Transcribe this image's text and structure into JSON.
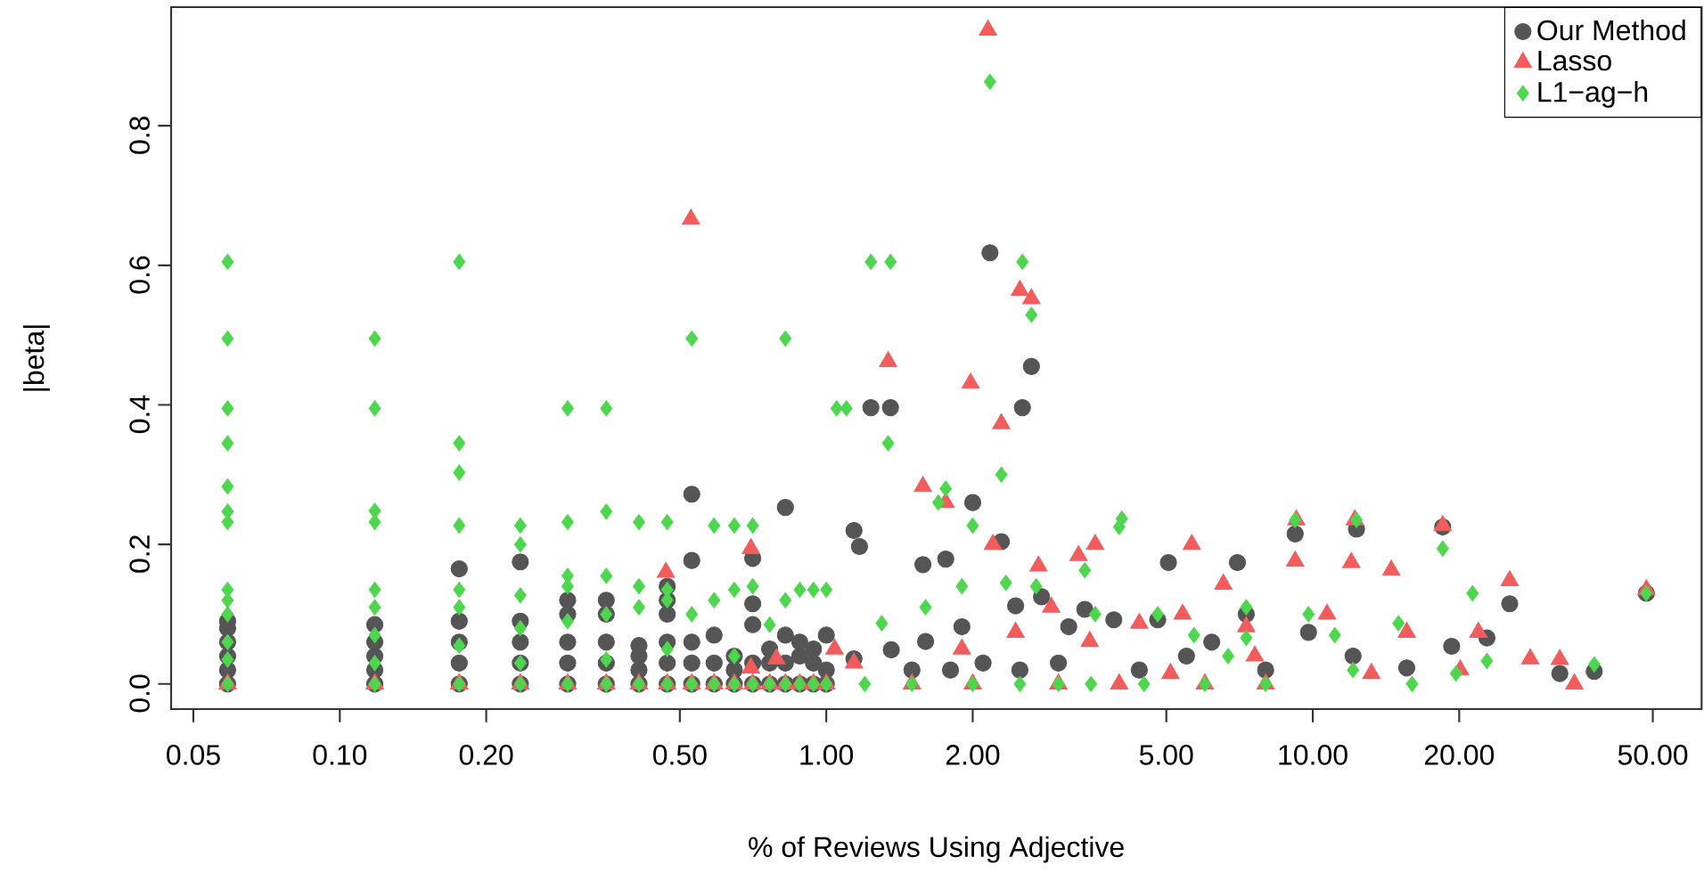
{
  "chart_data": {
    "type": "scatter",
    "xlabel": "% of Reviews Using Adjective",
    "ylabel": "|beta|",
    "log": "x",
    "legend": "top right",
    "grid": false,
    "xlim": [
      0.045,
      63
    ],
    "ylim": [
      -0.036,
      0.97
    ],
    "xticks": [
      {
        "value": 0.05,
        "label": "0.05"
      },
      {
        "value": 0.1,
        "label": "0.10"
      },
      {
        "value": 0.2,
        "label": "0.20"
      },
      {
        "value": 0.5,
        "label": "0.50"
      },
      {
        "value": 1,
        "label": "1.00"
      },
      {
        "value": 2,
        "label": "2.00"
      },
      {
        "value": 5,
        "label": "5.00"
      },
      {
        "value": 10,
        "label": "10.00"
      },
      {
        "value": 20,
        "label": "20.00"
      },
      {
        "value": 50,
        "label": "50.00"
      }
    ],
    "yticks": [
      {
        "value": 0,
        "label": "0.0"
      },
      {
        "value": 0.2,
        "label": "0.2"
      },
      {
        "value": 0.4,
        "label": "0.4"
      },
      {
        "value": 0.6,
        "label": "0.6"
      },
      {
        "value": 0.8,
        "label": "0.8"
      }
    ],
    "series": [
      {
        "name": "Our Method",
        "color": "#555555",
        "marker": "circle",
        "x": [
          0.0588,
          0.0588,
          0.0588,
          0.0588,
          0.0588,
          0.0588,
          0.118,
          0.118,
          0.118,
          0.118,
          0.118,
          0.176,
          0.176,
          0.176,
          0.176,
          0.176,
          0.235,
          0.235,
          0.235,
          0.235,
          0.235,
          0.294,
          0.294,
          0.294,
          0.294,
          0.294,
          0.353,
          0.353,
          0.353,
          0.353,
          0.353,
          0.412,
          0.412,
          0.412,
          0.412,
          0.471,
          0.471,
          0.471,
          0.471,
          0.471,
          0.471,
          0.529,
          0.529,
          0.529,
          0.529,
          0.529,
          0.588,
          0.588,
          0.588,
          0.647,
          0.647,
          0.647,
          0.706,
          0.706,
          0.706,
          0.706,
          0.706,
          0.765,
          0.765,
          0.765,
          0.824,
          0.824,
          0.824,
          0.824,
          0.882,
          0.882,
          0.882,
          0.941,
          0.941,
          0.941,
          1.0,
          1.0,
          1.0,
          1.14,
          1.14,
          1.17,
          1.235,
          1.355,
          1.36,
          1.5,
          1.58,
          1.6,
          1.76,
          1.8,
          1.9,
          2.0,
          2.1,
          2.17,
          2.29,
          2.45,
          2.5,
          2.53,
          2.64,
          2.77,
          3.0,
          3.15,
          3.4,
          3.9,
          4.4,
          4.8,
          5.05,
          5.5,
          6.2,
          7.0,
          7.3,
          8.0,
          9.2,
          9.8,
          12.1,
          12.3,
          15.6,
          18.5,
          19.3,
          22.8,
          25.4,
          32.2,
          37.9,
          48.5
        ],
        "values": [
          0,
          0.02,
          0.04,
          0.06,
          0.08,
          0.09,
          0,
          0.02,
          0.04,
          0.06,
          0.085,
          0,
          0.03,
          0.06,
          0.09,
          0.165,
          0,
          0.03,
          0.06,
          0.09,
          0.175,
          0,
          0.03,
          0.06,
          0.1,
          0.12,
          0,
          0.03,
          0.06,
          0.1,
          0.12,
          0,
          0.02,
          0.04,
          0.055,
          0,
          0.03,
          0.06,
          0.1,
          0.12,
          0.14,
          0,
          0.03,
          0.06,
          0.177,
          0.272,
          0,
          0.03,
          0.07,
          0,
          0.02,
          0.04,
          0,
          0.03,
          0.085,
          0.115,
          0.18,
          0,
          0.03,
          0.05,
          0,
          0.03,
          0.07,
          0.253,
          0,
          0.04,
          0.06,
          0,
          0.03,
          0.05,
          0,
          0.02,
          0.07,
          0.036,
          0.22,
          0.197,
          0.396,
          0.396,
          0.049,
          0.02,
          0.171,
          0.061,
          0.179,
          0.02,
          0.082,
          0.26,
          0.03,
          0.618,
          0.204,
          0.112,
          0.02,
          0.396,
          0.455,
          0.125,
          0.03,
          0.082,
          0.107,
          0.092,
          0.02,
          0.092,
          0.174,
          0.04,
          0.06,
          0.174,
          0.1,
          0.02,
          0.215,
          0.074,
          0.04,
          0.222,
          0.023,
          0.225,
          0.054,
          0.066,
          0.115,
          0.015,
          0.018,
          0.13
        ]
      },
      {
        "name": "Lasso",
        "color": "#f25c5c",
        "marker": "triangle",
        "x": [
          0.0588,
          0.118,
          0.176,
          0.235,
          0.294,
          0.353,
          0.412,
          0.471,
          0.529,
          0.588,
          0.647,
          0.706,
          0.765,
          0.824,
          0.882,
          0.941,
          1.0,
          0.468,
          0.527,
          0.7,
          0.7,
          0.79,
          1.04,
          1.14,
          1.34,
          1.5,
          1.58,
          1.76,
          1.9,
          1.98,
          2.0,
          2.15,
          2.2,
          2.29,
          2.45,
          2.5,
          2.64,
          2.73,
          2.9,
          3.0,
          3.3,
          3.48,
          3.57,
          4.0,
          4.4,
          5.1,
          5.4,
          5.64,
          6.0,
          6.55,
          7.3,
          7.6,
          8.0,
          9.2,
          9.25,
          10.7,
          12.0,
          12.2,
          13.2,
          14.5,
          15.6,
          18.5,
          20.1,
          21.9,
          25.4,
          28.0,
          32.2,
          34.5,
          48.5
        ],
        "values": [
          0,
          0,
          0,
          0,
          0,
          0,
          0,
          0,
          0,
          0,
          0,
          0,
          0,
          0,
          0,
          0,
          0,
          0.16,
          0.666,
          0.194,
          0.023,
          0.036,
          0.05,
          0.03,
          0.462,
          0,
          0.283,
          0.26,
          0.05,
          0.431,
          0,
          0.937,
          0.2,
          0.373,
          0.074,
          0.564,
          0.552,
          0.169,
          0.11,
          0,
          0.184,
          0.061,
          0.2,
          0,
          0.087,
          0.015,
          0.1,
          0.2,
          0,
          0.143,
          0.082,
          0.04,
          0,
          0.176,
          0.235,
          0.1,
          0.174,
          0.235,
          0.015,
          0.163,
          0.074,
          0.227,
          0.02,
          0.074,
          0.148,
          0.036,
          0.035,
          0,
          0.135
        ]
      },
      {
        "name": "L1−ag−h",
        "color": "#4fd64f",
        "marker": "diamond",
        "x": [
          0.0588,
          0.0588,
          0.0588,
          0.0588,
          0.0588,
          0.0588,
          0.0588,
          0.0588,
          0.0588,
          0.0588,
          0.0588,
          0.0588,
          0.0588,
          0.118,
          0.118,
          0.118,
          0.118,
          0.118,
          0.118,
          0.118,
          0.118,
          0.118,
          0.176,
          0.176,
          0.176,
          0.176,
          0.176,
          0.176,
          0.176,
          0.176,
          0.235,
          0.235,
          0.235,
          0.235,
          0.235,
          0.235,
          0.294,
          0.294,
          0.294,
          0.294,
          0.294,
          0.294,
          0.353,
          0.353,
          0.353,
          0.353,
          0.353,
          0.353,
          0.412,
          0.412,
          0.412,
          0.412,
          0.471,
          0.471,
          0.471,
          0.471,
          0.471,
          0.529,
          0.529,
          0.529,
          0.588,
          0.588,
          0.588,
          0.647,
          0.647,
          0.647,
          0.647,
          0.706,
          0.706,
          0.706,
          0.765,
          0.765,
          0.824,
          0.824,
          0.824,
          0.882,
          0.882,
          0.941,
          0.941,
          1.0,
          1.0,
          1.05,
          1.1,
          1.2,
          1.235,
          1.3,
          1.34,
          1.355,
          1.5,
          1.6,
          1.7,
          1.76,
          1.9,
          2.0,
          2.0,
          2.17,
          2.29,
          2.34,
          2.5,
          2.53,
          2.64,
          2.7,
          3.0,
          3.4,
          3.57,
          3.5,
          4.0,
          4.05,
          4.5,
          4.8,
          5.7,
          6.0,
          6.7,
          7.3,
          7.3,
          8.0,
          9.2,
          9.8,
          11.1,
          12.1,
          12.3,
          15.0,
          16.0,
          18.5,
          19.7,
          21.3,
          22.8,
          37.9,
          48.5
        ],
        "values": [
          0.605,
          0.495,
          0.395,
          0.345,
          0.283,
          0.247,
          0.232,
          0.135,
          0.12,
          0.1,
          0.06,
          0.035,
          0,
          0.495,
          0.395,
          0.248,
          0.232,
          0.135,
          0.11,
          0.07,
          0.03,
          0,
          0.605,
          0.345,
          0.303,
          0.227,
          0.135,
          0.11,
          0.055,
          0,
          0.227,
          0.2,
          0.127,
          0.08,
          0.03,
          0,
          0.395,
          0.232,
          0.155,
          0.14,
          0.09,
          0,
          0.395,
          0.247,
          0.155,
          0.1,
          0.035,
          0,
          0.232,
          0.14,
          0.11,
          0,
          0.232,
          0.135,
          0.12,
          0.05,
          0,
          0.495,
          0.1,
          0,
          0.227,
          0.12,
          0,
          0.227,
          0.135,
          0.04,
          0,
          0.227,
          0.14,
          0,
          0.085,
          0,
          0.495,
          0.12,
          0,
          0.135,
          0,
          0.135,
          0,
          0.135,
          0,
          0.395,
          0.395,
          0,
          0.605,
          0.087,
          0.345,
          0.605,
          0,
          0.11,
          0.26,
          0.28,
          0.14,
          0.227,
          0,
          0.863,
          0.3,
          0.145,
          0,
          0.605,
          0.529,
          0.14,
          0,
          0.163,
          0.1,
          0,
          0.225,
          0.237,
          0,
          0.1,
          0.07,
          0,
          0.04,
          0.066,
          0.11,
          0,
          0.235,
          0.1,
          0.07,
          0.02,
          0.235,
          0.087,
          0,
          0.194,
          0.015,
          0.13,
          0.033,
          0.028,
          0.13
        ]
      }
    ]
  }
}
